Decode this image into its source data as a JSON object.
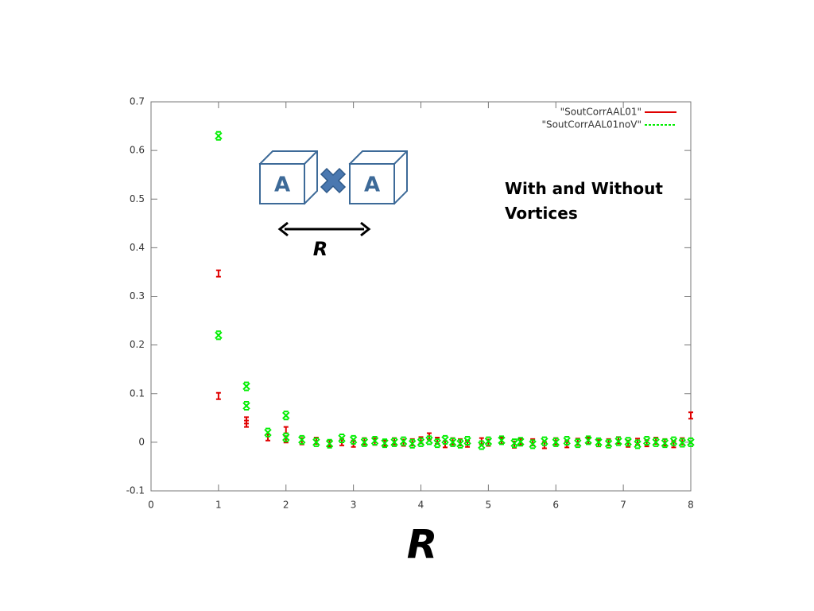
{
  "chart_data": {
    "type": "scatter",
    "x": [
      1,
      1,
      1.414,
      1.414,
      1.732,
      2,
      2,
      2.236,
      2.449,
      2.646,
      2.828,
      3,
      3.162,
      3.317,
      3.464,
      3.606,
      3.742,
      3.873,
      4,
      4.123,
      4.243,
      4.359,
      4.472,
      4.583,
      4.69,
      4.899,
      5,
      5.196,
      5.385,
      5.477,
      5.657,
      5.831,
      6,
      6.164,
      6.325,
      6.481,
      6.633,
      6.782,
      6.928,
      7.071,
      7.211,
      7.348,
      7.483,
      7.616,
      7.746,
      7.874,
      8
    ],
    "series": [
      {
        "name": "\"SoutCorrAAL01\"",
        "color": "#e00000",
        "values": [
          0.347,
          0.095,
          0.045,
          0.038,
          0.01,
          0.025,
          0.006,
          0.002,
          0.003,
          -0.002,
          0.0,
          -0.003,
          0.002,
          0.001,
          -0.002,
          0.002,
          -0.001,
          0.0,
          0.004,
          0.012,
          0.003,
          -0.004,
          0.002,
          0.0,
          -0.003,
          0.002,
          -0.001,
          0.003,
          -0.005,
          0.001,
          0.0,
          -0.006,
          0.002,
          -0.004,
          0.001,
          0.003,
          -0.002,
          0.0,
          0.004,
          -0.003,
          0.001,
          -0.002,
          0.003,
          0.0,
          -0.004,
          0.002,
          0.055
        ]
      },
      {
        "name": "\"SoutCorrAAL01noV\"",
        "color": "#00ee00",
        "values": [
          0.63,
          0.22,
          0.115,
          0.075,
          0.02,
          0.055,
          0.01,
          0.005,
          0.0,
          -0.003,
          0.008,
          0.005,
          0.0,
          0.003,
          -0.002,
          0.0,
          0.002,
          -0.003,
          0.0,
          0.004,
          -0.002,
          0.005,
          0.0,
          -0.003,
          0.003,
          -0.006,
          0.002,
          0.004,
          -0.002,
          0.001,
          -0.004,
          0.002,
          0.0,
          0.003,
          -0.002,
          0.004,
          0.0,
          -0.003,
          0.002,
          0.001,
          -0.004,
          0.003,
          0.0,
          -0.002,
          0.002,
          -0.001,
          0.0
        ]
      }
    ],
    "xlim": [
      0,
      8
    ],
    "xticks": [
      0,
      1,
      2,
      3,
      4,
      5,
      6,
      7,
      8
    ],
    "ylim": [
      -0.1,
      0.7
    ],
    "yticks": [
      -0.1,
      0,
      0.1,
      0.2,
      0.3,
      0.4,
      0.5,
      0.6,
      0.7
    ],
    "xlabel": "R",
    "legend": "top-right",
    "annotation": "With and Without Vortices",
    "inset": {
      "left": "A",
      "right": "A",
      "distance": "R"
    }
  }
}
